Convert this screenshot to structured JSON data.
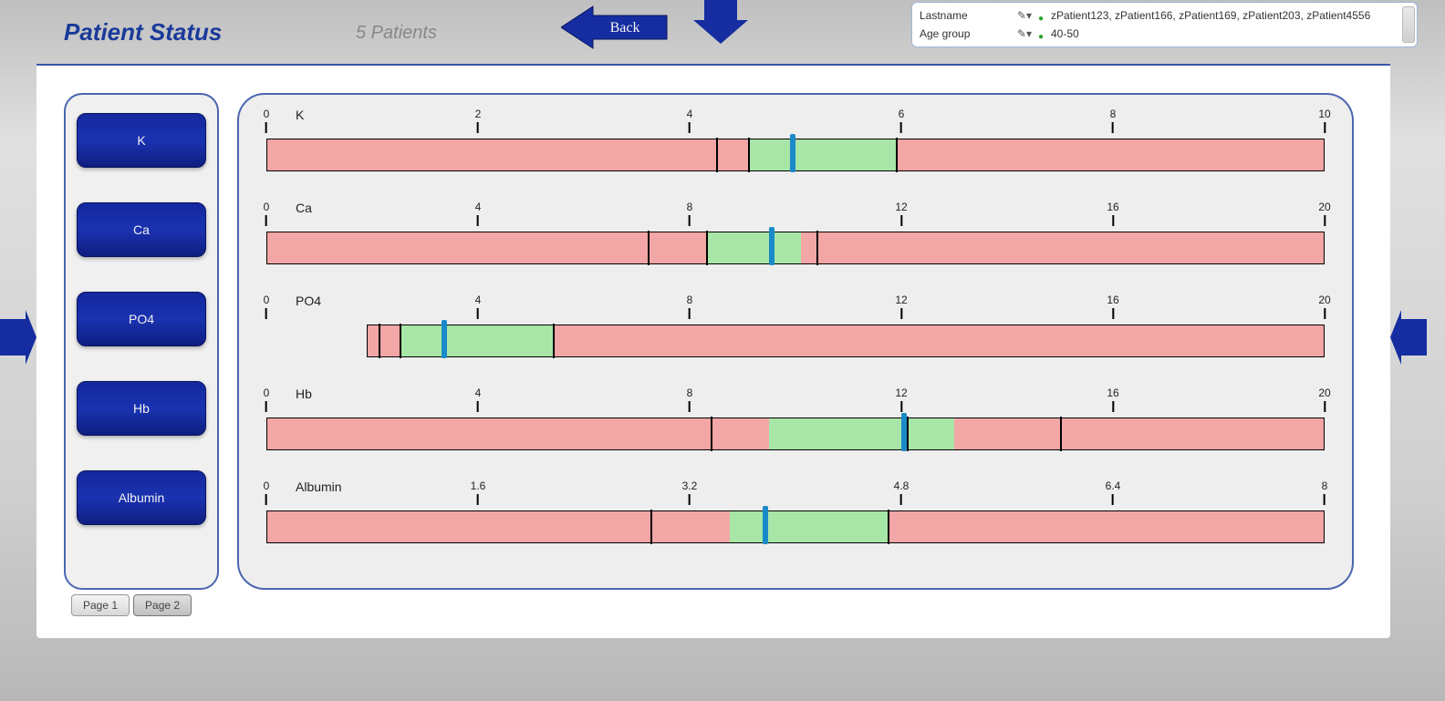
{
  "header": {
    "title": "Patient Status",
    "patient_count_label": "5 Patients",
    "back_label": "Back"
  },
  "filters": {
    "rows": [
      {
        "label": "Lastname",
        "value": "zPatient123, zPatient166, zPatient169, zPatient203, zPatient4556"
      },
      {
        "label": "Age group",
        "value": "40-50"
      }
    ]
  },
  "sidebar": {
    "buttons": [
      "K",
      "Ca",
      "PO4",
      "Hb",
      "Albumin"
    ]
  },
  "pages": {
    "tabs": [
      "Page 1",
      "Page 2"
    ],
    "active": 1
  },
  "colors": {
    "brand_blue": "#152da0",
    "button_blue": "#14289e",
    "panel_border": "#4a66b0",
    "bar_out_of_range": "#f3a6a6",
    "bar_in_range": "#a8e6a8",
    "marker_blue": "#1a8ac8",
    "axis_text": "#222222",
    "bg_panel": "#eeeeee"
  },
  "charts": [
    {
      "label": "K",
      "min": 0,
      "max": 10,
      "ticks": [
        0,
        2,
        4,
        6,
        8,
        10
      ],
      "green_range": [
        4.55,
        5.95
      ],
      "black_marks": [
        4.25,
        4.55,
        5.95
      ],
      "blue_mark": 4.95
    },
    {
      "label": "Ca",
      "min": 0,
      "max": 20,
      "ticks": [
        0,
        4,
        8,
        12,
        16,
        20
      ],
      "green_range": [
        8.3,
        10.1
      ],
      "black_marks": [
        7.2,
        8.3,
        10.4
      ],
      "blue_mark": 9.5
    },
    {
      "label": "PO4",
      "min": 0,
      "max": 20,
      "ticks": [
        0,
        4,
        8,
        12,
        16,
        20
      ],
      "green_range": [
        2.5,
        5.4
      ],
      "black_marks": [
        2.1,
        2.5,
        5.4
      ],
      "blue_mark": 3.3,
      "bar_start": 1.9
    },
    {
      "label": "Hb",
      "min": 0,
      "max": 20,
      "ticks": [
        0,
        4,
        8,
        12,
        16,
        20
      ],
      "green_range": [
        9.5,
        13.0
      ],
      "black_marks": [
        8.4,
        12.1,
        15.0
      ],
      "blue_mark": 12.0
    },
    {
      "label": "Albumin",
      "min": 0,
      "max": 8,
      "ticks": [
        0,
        1.6,
        3.2,
        4.8,
        6.4,
        8
      ],
      "green_range": [
        3.5,
        4.7
      ],
      "black_marks": [
        2.9,
        4.7
      ],
      "blue_mark": 3.75
    }
  ]
}
